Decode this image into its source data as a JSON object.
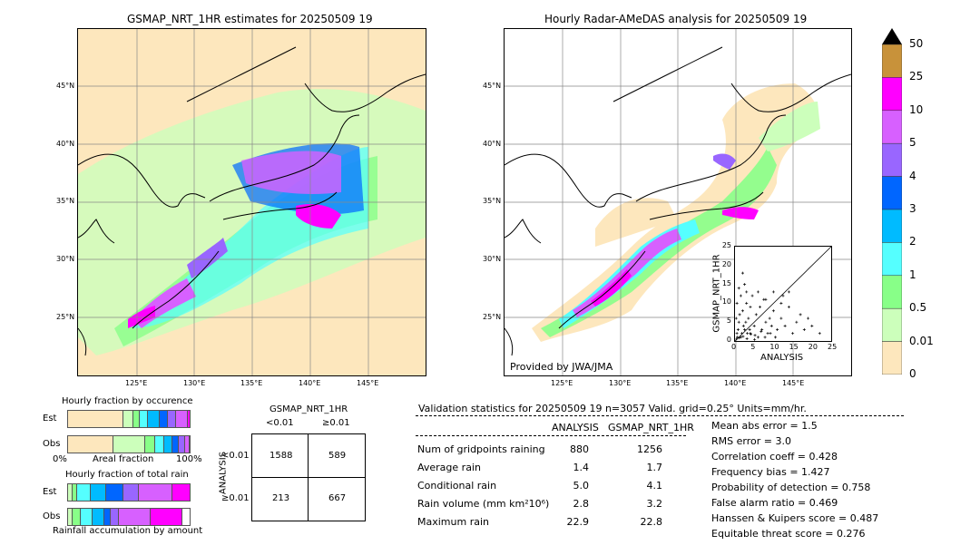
{
  "left_map": {
    "title": "GSMAP_NRT_1HR estimates for 20250509 19",
    "lat_labels": [
      "45°N",
      "40°N",
      "35°N",
      "30°N",
      "25°N"
    ],
    "lon_labels": [
      "125°E",
      "130°E",
      "135°E",
      "140°E",
      "145°E"
    ]
  },
  "right_map": {
    "title": "Hourly Radar-AMeDAS analysis for 20250509 19",
    "lat_labels": [
      "45°N",
      "40°N",
      "35°N",
      "30°N",
      "25°N"
    ],
    "lon_labels": [
      "125°E",
      "130°E",
      "135°E",
      "140°E",
      "145°E"
    ],
    "credit": "Provided by JWA/JMA"
  },
  "scatter": {
    "ylabel": "GSMAP_NRT_1HR",
    "xlabel": "ANALYSIS",
    "ticks": [
      "0",
      "5",
      "10",
      "15",
      "20",
      "25"
    ]
  },
  "colorbar": {
    "labels": [
      "50",
      "25",
      "10",
      "5",
      "4",
      "3",
      "2",
      "1",
      "0.5",
      "0.01",
      "0"
    ],
    "colors": [
      "#c8923a",
      "#ff00ff",
      "#d760ff",
      "#9966ff",
      "#0066ff",
      "#00bbff",
      "#55ffff",
      "#88ff88",
      "#ccffbb",
      "#fde7bd"
    ]
  },
  "fraction_occurrence": {
    "title": "Hourly fraction by occurence",
    "rows": [
      "Est",
      "Obs"
    ],
    "axis_left": "0%",
    "axis_mid": "Areal fraction",
    "axis_right": "100%"
  },
  "fraction_rain": {
    "title": "Hourly fraction of total rain",
    "rows": [
      "Est",
      "Obs"
    ],
    "footer": "Rainfall accumulation by amount"
  },
  "contingency": {
    "col_title": "GSMAP_NRT_1HR",
    "col_labels": [
      "<0.01",
      "≥0.01"
    ],
    "row_title": "ANALYSIS",
    "row_labels": [
      "<0.01",
      "≥0.01"
    ],
    "cells": [
      [
        "1588",
        "589"
      ],
      [
        "213",
        "667"
      ]
    ]
  },
  "validation": {
    "header": "Validation statistics for 20250509 19  n=3057 Valid. grid=0.25° Units=mm/hr.",
    "col_analysis": "ANALYSIS",
    "col_gsmap": "GSMAP_NRT_1HR",
    "rows": [
      {
        "label": "Num of gridpoints raining",
        "analysis": "880",
        "gsmap": "1256"
      },
      {
        "label": "Average rain",
        "analysis": "1.4",
        "gsmap": "1.7"
      },
      {
        "label": "Conditional rain",
        "analysis": "5.0",
        "gsmap": "4.1"
      },
      {
        "label": "Rain volume (mm km²10⁶)",
        "analysis": "2.8",
        "gsmap": "3.2"
      },
      {
        "label": "Maximum rain",
        "analysis": "22.9",
        "gsmap": "22.8"
      }
    ],
    "scores": [
      "Mean abs error =    1.5",
      "RMS error =    3.0",
      "Correlation coeff =  0.428",
      "Frequency bias =  1.427",
      "Probability of detection =  0.758",
      "False alarm ratio =  0.469",
      "Hanssen & Kuipers score =  0.487",
      "Equitable threat score =  0.276"
    ]
  },
  "chart_data": {
    "type": "scatter",
    "xlabel": "ANALYSIS",
    "ylabel": "GSMAP_NRT_1HR",
    "xlim": [
      0,
      25
    ],
    "ylim": [
      0,
      25
    ],
    "points": [
      [
        0.5,
        2
      ],
      [
        1,
        5
      ],
      [
        1.5,
        1
      ],
      [
        2,
        8
      ],
      [
        2.5,
        3
      ],
      [
        3,
        10
      ],
      [
        3.5,
        6
      ],
      [
        4,
        2
      ],
      [
        4.5,
        12
      ],
      [
        5,
        4
      ],
      [
        5.5,
        7
      ],
      [
        6,
        1
      ],
      [
        6.5,
        9
      ],
      [
        7,
        3
      ],
      [
        7.5,
        11
      ],
      [
        8,
        5
      ],
      [
        8.5,
        2
      ],
      [
        9,
        6
      ],
      [
        9.5,
        4
      ],
      [
        10,
        8
      ],
      [
        10.5,
        1
      ],
      [
        11,
        3
      ],
      [
        12,
        6
      ],
      [
        12.5,
        12
      ],
      [
        13,
        4
      ],
      [
        14,
        9
      ],
      [
        15,
        2
      ],
      [
        16,
        5
      ],
      [
        17,
        7
      ],
      [
        18,
        3
      ],
      [
        19,
        6
      ],
      [
        20,
        4
      ],
      [
        22,
        2
      ],
      [
        1,
        14
      ],
      [
        2,
        18
      ],
      [
        3,
        13
      ],
      [
        0.5,
        10
      ],
      [
        1.5,
        12
      ],
      [
        2.5,
        15
      ],
      [
        4,
        9
      ],
      [
        6,
        13
      ],
      [
        8,
        11
      ],
      [
        10,
        13
      ],
      [
        12,
        10
      ],
      [
        14,
        13
      ],
      [
        0.3,
        6
      ],
      [
        0.8,
        3
      ],
      [
        1.2,
        7
      ],
      [
        2.2,
        4
      ],
      [
        3.2,
        2
      ],
      [
        0.6,
        1
      ],
      [
        1.8,
        2
      ],
      [
        2.8,
        5
      ],
      [
        3.8,
        3
      ],
      [
        5.2,
        1.5
      ],
      [
        6.8,
        2.5
      ],
      [
        7.8,
        1
      ],
      [
        9.2,
        2
      ],
      [
        0.4,
        0.5
      ],
      [
        1.1,
        0.8
      ],
      [
        2.1,
        1.2
      ],
      [
        3.1,
        0.6
      ],
      [
        4.1,
        1.8
      ],
      [
        5.1,
        0.4
      ]
    ]
  }
}
